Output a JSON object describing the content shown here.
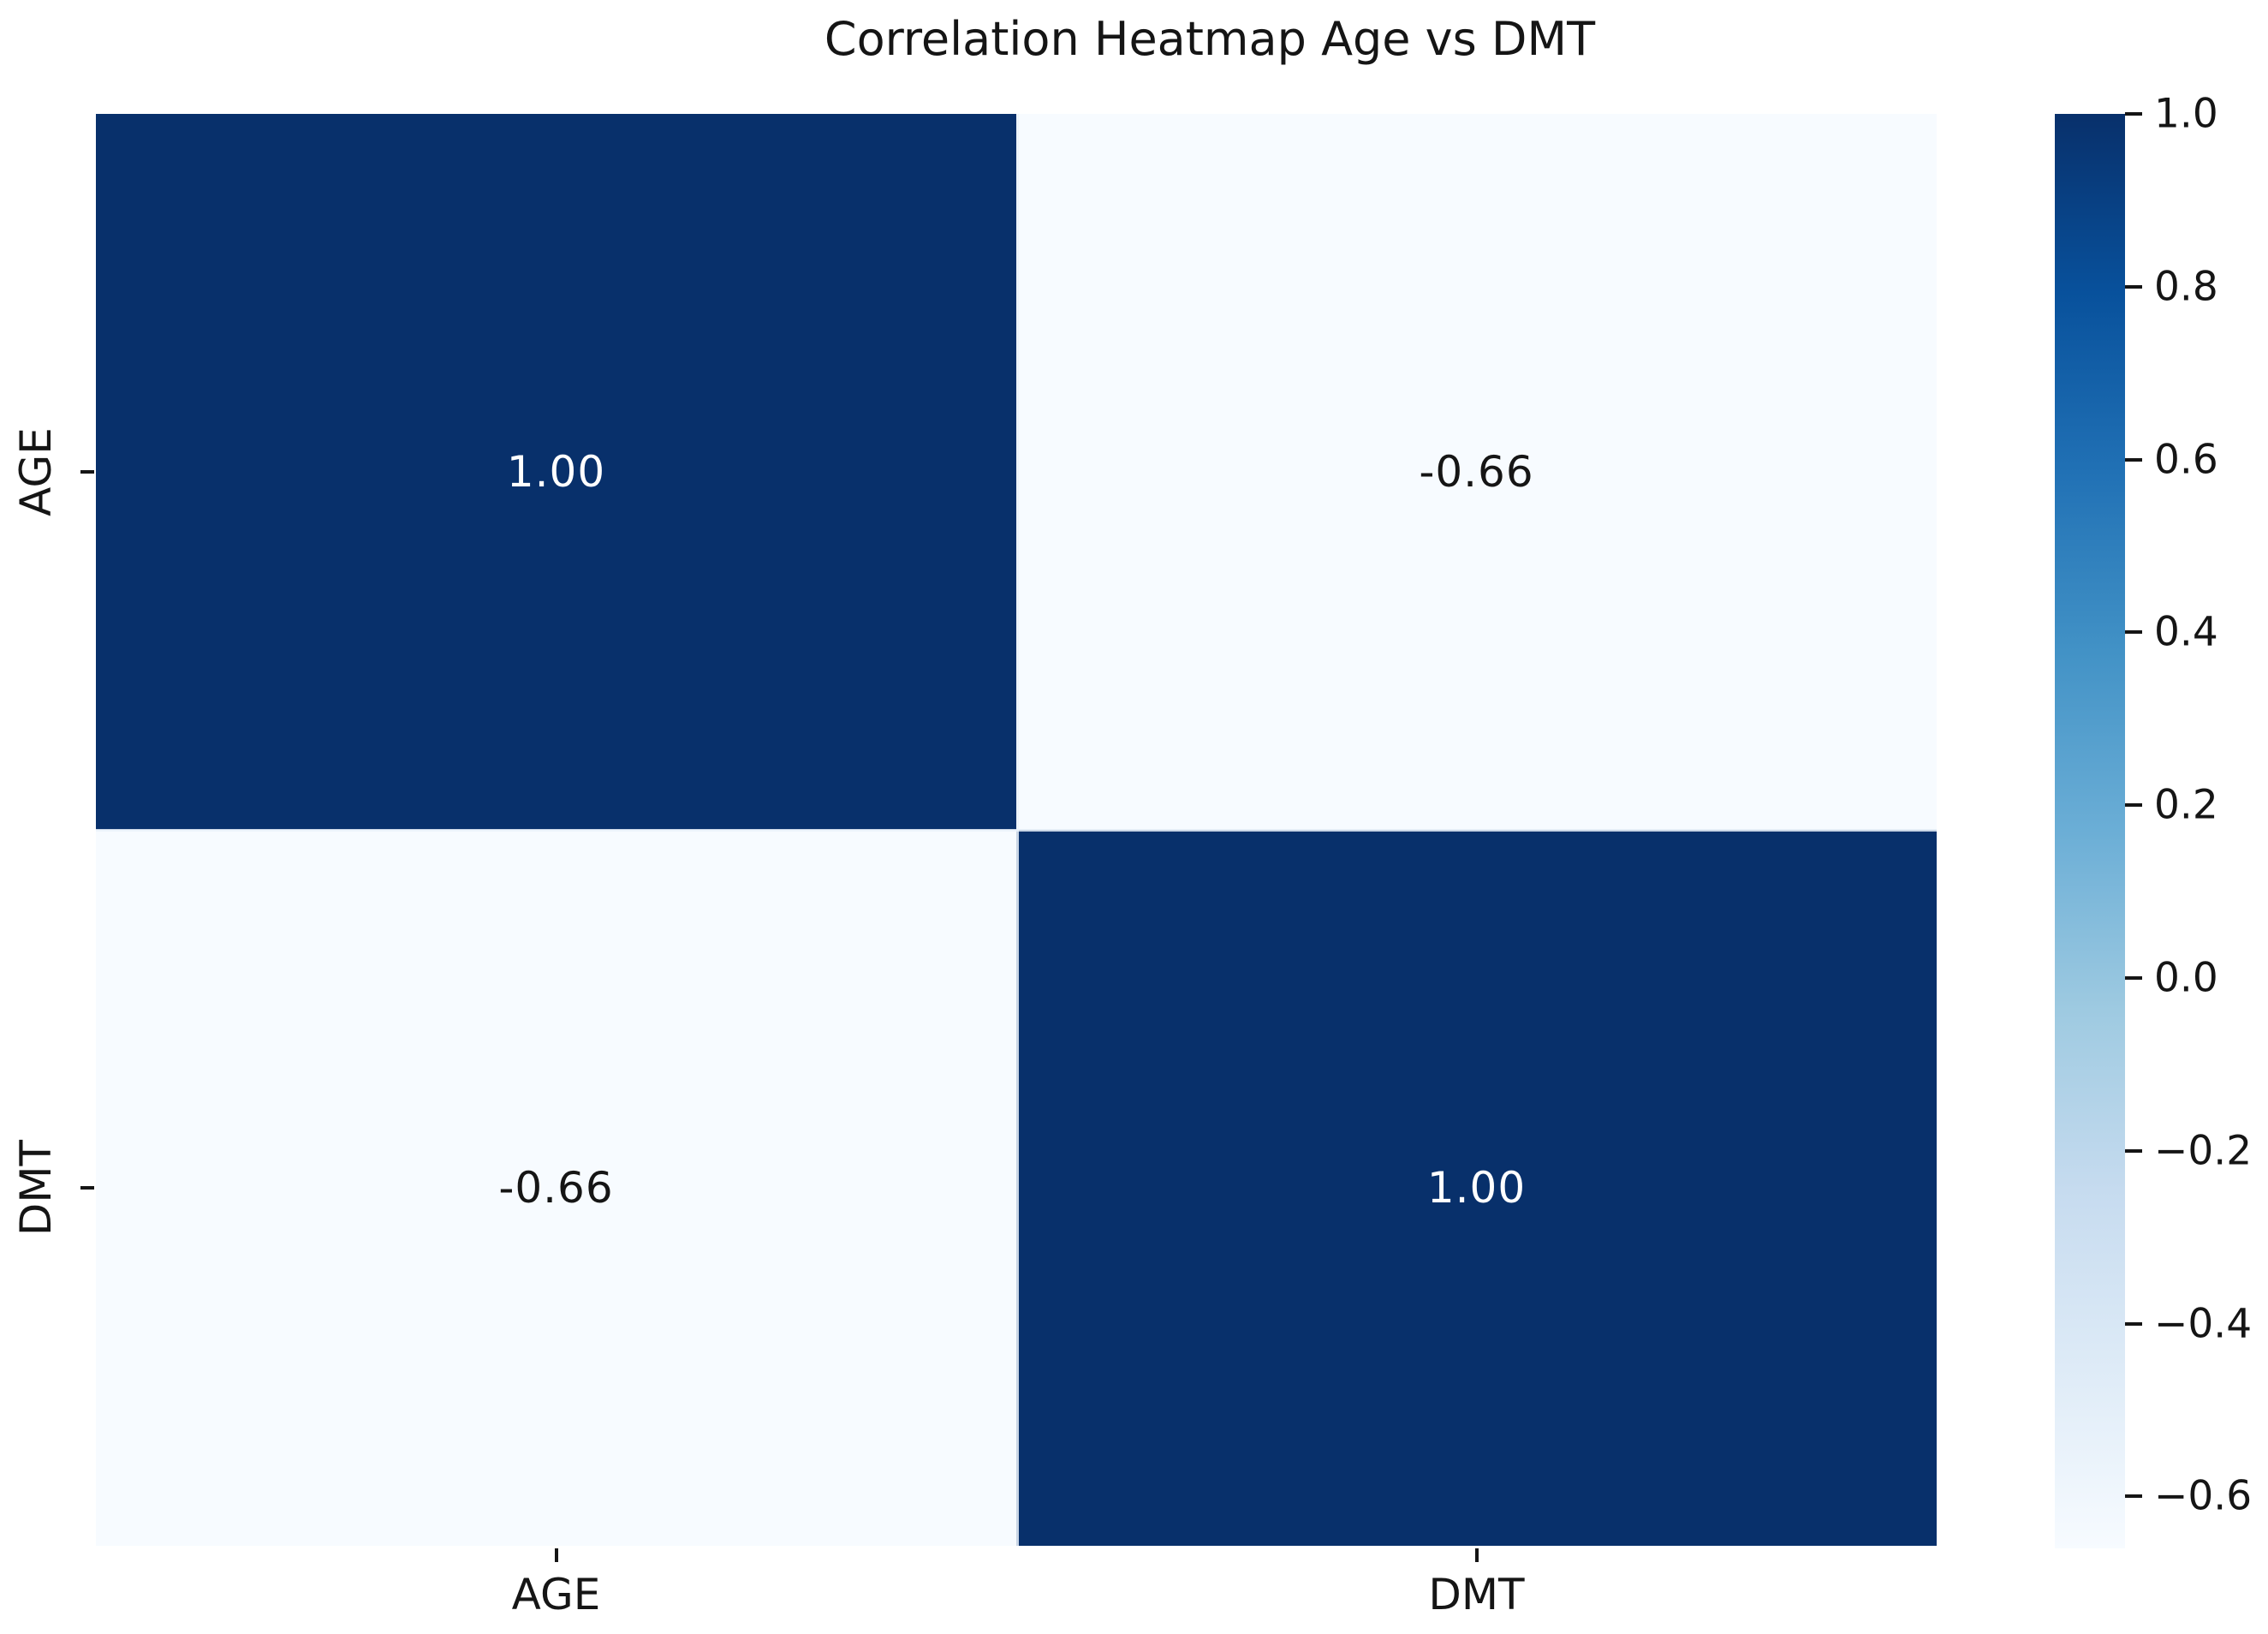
{
  "figure": {
    "background_color": "#ffffff",
    "text_color": "#151515"
  },
  "chart_data": {
    "type": "heatmap",
    "title": "Correlation Heatmap Age vs DMT",
    "rows": [
      "AGE",
      "DMT"
    ],
    "columns": [
      "AGE",
      "DMT"
    ],
    "matrix": [
      [
        1.0,
        -0.66
      ],
      [
        -0.66,
        1.0
      ]
    ],
    "cell_labels": [
      [
        "1.00",
        "-0.66"
      ],
      [
        "-0.66",
        "1.00"
      ]
    ],
    "cell_colors": [
      [
        "#08306b",
        "#f7fbff"
      ],
      [
        "#f7fbff",
        "#08306b"
      ]
    ],
    "cell_text_colors": [
      [
        "#ffffff",
        "#151515"
      ],
      [
        "#151515",
        "#ffffff"
      ]
    ],
    "vmin": -0.66,
    "vmax": 1.0,
    "colormap_name": "Blues",
    "colormap_stops": [
      "#f7fbff",
      "#deebf7",
      "#c6dbef",
      "#9ecae1",
      "#6baed6",
      "#4292c6",
      "#2171b5",
      "#08519c",
      "#08306b"
    ],
    "colorbar_tick_values": [
      1.0,
      0.8,
      0.6,
      0.4,
      0.2,
      0.0,
      -0.2,
      -0.4,
      -0.6
    ],
    "colorbar_tick_labels": [
      "1.0",
      "0.8",
      "0.6",
      "0.4",
      "0.2",
      "0.0",
      "−0.2",
      "−0.4",
      "−0.6"
    ],
    "legend_position": "right-colorbar",
    "grid": false,
    "xlabel": "",
    "ylabel": ""
  }
}
